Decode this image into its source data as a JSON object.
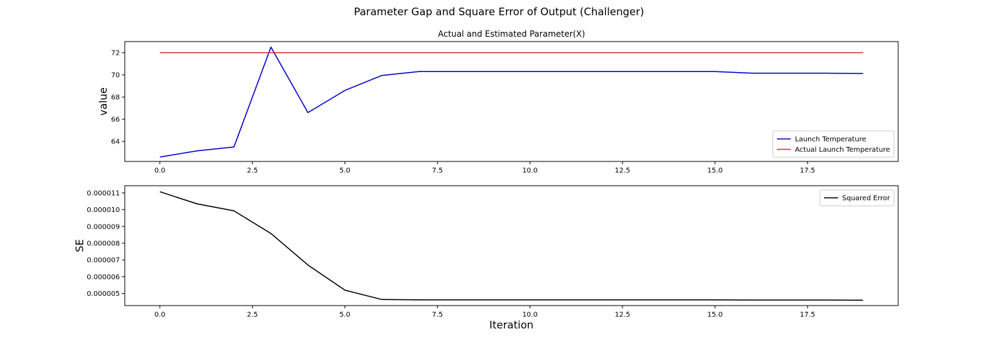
{
  "figure": {
    "suptitle": "Parameter Gap and Square Error of Output (Challenger)"
  },
  "chart_data": [
    {
      "type": "line",
      "title": "Actual and Estimated Parameter(X)",
      "xlabel": "",
      "ylabel": "value",
      "xlim": [
        -0.95,
        19.95
      ],
      "ylim": [
        62.2,
        73.0
      ],
      "x_ticks": [
        0.0,
        2.5,
        5.0,
        7.5,
        10.0,
        12.5,
        15.0,
        17.5
      ],
      "x_tick_labels": [
        "0.0",
        "2.5",
        "5.0",
        "7.5",
        "10.0",
        "12.5",
        "15.0",
        "17.5"
      ],
      "y_ticks": [
        64,
        66,
        68,
        70,
        72
      ],
      "y_tick_labels": [
        "64",
        "66",
        "68",
        "70",
        "72"
      ],
      "grid": false,
      "legend_position": "lower-right",
      "x": [
        0,
        1,
        2,
        3,
        4,
        5,
        6,
        7,
        8,
        9,
        10,
        11,
        12,
        13,
        14,
        15,
        16,
        17,
        18,
        19
      ],
      "series": [
        {
          "name": "Launch Temperature",
          "color": "#0000cc",
          "values": [
            62.6,
            63.15,
            63.5,
            72.5,
            66.6,
            68.6,
            69.95,
            70.3,
            70.3,
            70.3,
            70.3,
            70.3,
            70.3,
            70.3,
            70.3,
            70.3,
            70.15,
            70.15,
            70.15,
            70.12
          ]
        },
        {
          "name": "Actual Launch Temperature",
          "color": "#e03030",
          "values": [
            72,
            72,
            72,
            72,
            72,
            72,
            72,
            72,
            72,
            72,
            72,
            72,
            72,
            72,
            72,
            72,
            72,
            72,
            72,
            72
          ]
        }
      ]
    },
    {
      "type": "line",
      "title": "",
      "xlabel": "Iteration",
      "ylabel": "SE",
      "xlim": [
        -0.95,
        19.95
      ],
      "ylim": [
        4.28e-06,
        1.143e-05
      ],
      "x_ticks": [
        0.0,
        2.5,
        5.0,
        7.5,
        10.0,
        12.5,
        15.0,
        17.5
      ],
      "x_tick_labels": [
        "0.0",
        "2.5",
        "5.0",
        "7.5",
        "10.0",
        "12.5",
        "15.0",
        "17.5"
      ],
      "y_ticks": [
        5e-06,
        6e-06,
        7e-06,
        8e-06,
        9e-06,
        1e-05,
        1.1e-05
      ],
      "y_tick_labels": [
        "0.000005",
        "0.000006",
        "0.000007",
        "0.000008",
        "0.000009",
        "0.000010",
        "0.000011"
      ],
      "grid": false,
      "legend_position": "upper-right",
      "x": [
        0,
        1,
        2,
        3,
        4,
        5,
        6,
        7,
        8,
        9,
        10,
        11,
        12,
        13,
        14,
        15,
        16,
        17,
        18,
        19
      ],
      "series": [
        {
          "name": "Squared Error",
          "color": "#000000",
          "values": [
            1.107e-05,
            1.035e-05,
            9.93e-06,
            8.58e-06,
            6.7e-06,
            5.2e-06,
            4.64e-06,
            4.62e-06,
            4.62e-06,
            4.62e-06,
            4.62e-06,
            4.62e-06,
            4.62e-06,
            4.62e-06,
            4.62e-06,
            4.62e-06,
            4.61e-06,
            4.61e-06,
            4.61e-06,
            4.6e-06
          ]
        }
      ]
    }
  ]
}
